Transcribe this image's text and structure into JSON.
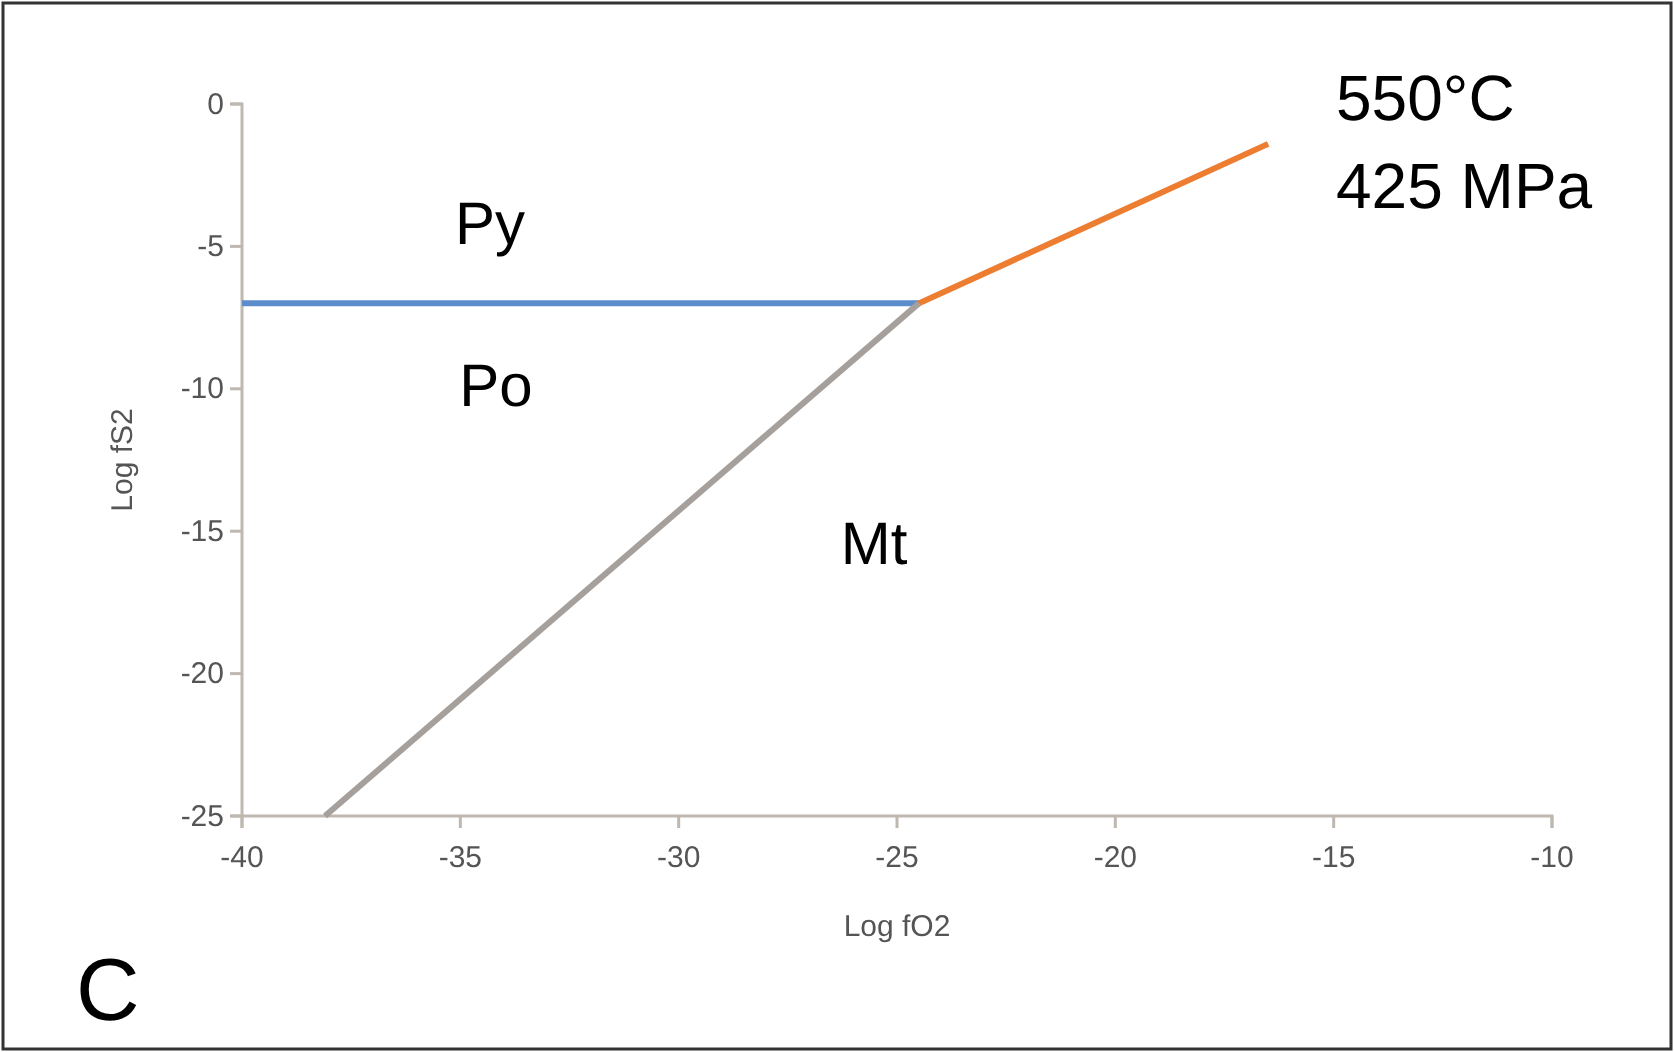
{
  "chart_data": {
    "type": "line",
    "xlabel": "Log fO2",
    "ylabel": "Log fS2",
    "xlim": [
      -40,
      -10
    ],
    "xticks": [
      -40,
      -35,
      -30,
      -25,
      -20,
      -15,
      -10
    ],
    "ylim": [
      -25,
      0
    ],
    "yticks": [
      -25,
      -20,
      -15,
      -10,
      -5,
      0
    ],
    "marker": "none",
    "line_style": "solid",
    "series": [
      {
        "color": "#5b8ccc",
        "x": [
          -40,
          -24.5
        ],
        "values": [
          -7,
          -7
        ]
      },
      {
        "color": "#ed7d31",
        "x": [
          -24.5,
          -16.5
        ],
        "values": [
          -7,
          -1.4
        ]
      },
      {
        "color": "#a5a09b",
        "x": [
          -38.1,
          -24.5
        ],
        "values": [
          -25,
          -7
        ]
      }
    ],
    "annotations": [
      "Py",
      "Po",
      "Mt",
      "550°C",
      "425 MPa",
      "C"
    ]
  }
}
